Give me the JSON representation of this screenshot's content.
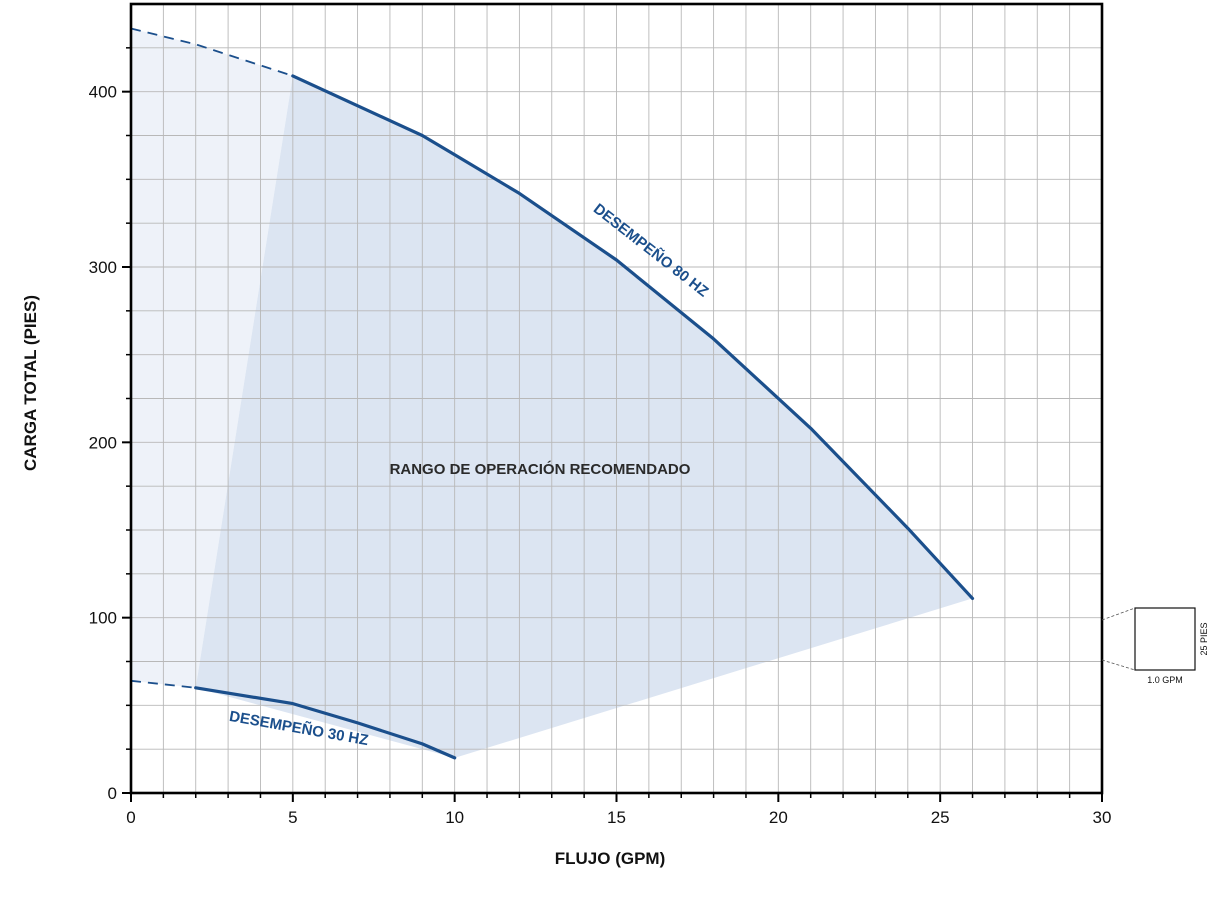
{
  "chart_data": {
    "type": "line",
    "xlabel": "FLUJO (GPM)",
    "ylabel": "CARGA TOTAL (PIES)",
    "xlim": [
      0,
      30
    ],
    "ylim": [
      0,
      450
    ],
    "x_ticks": [
      0,
      5,
      10,
      15,
      20,
      25,
      30
    ],
    "y_ticks": [
      0,
      100,
      200,
      300,
      400
    ],
    "x_minor_step": 1,
    "y_minor_step": 25,
    "grid": true,
    "series": [
      {
        "name": "DESEMPEÑO 80 HZ",
        "x": [
          5,
          9,
          10,
          12,
          15,
          18,
          21,
          24,
          26
        ],
        "y": [
          409,
          375,
          364,
          342,
          304,
          259,
          208,
          151,
          111
        ],
        "dashed_extension": {
          "x": [
            0,
            2,
            5
          ],
          "y": [
            436,
            427,
            409
          ]
        }
      },
      {
        "name": "DESEMPEÑO 30 HZ",
        "x": [
          2,
          5,
          7,
          9,
          10
        ],
        "y": [
          60,
          51,
          40,
          28,
          20
        ],
        "dashed_extension": {
          "x": [
            0,
            2
          ],
          "y": [
            64,
            60
          ]
        }
      }
    ],
    "recommended_region": {
      "label": "RANGO DE OPERACIÓN RECOMENDADO",
      "boundary_x": [
        2,
        5,
        9,
        10,
        12,
        15,
        18,
        21,
        24,
        26,
        10
      ],
      "boundary_y": [
        60,
        409,
        375,
        364,
        342,
        304,
        259,
        208,
        151,
        111,
        20
      ]
    },
    "extended_region": {
      "boundary_x": [
        0,
        2,
        5,
        5,
        2,
        0
      ],
      "boundary_y": [
        436,
        427,
        409,
        409,
        60,
        64
      ]
    },
    "colors": {
      "curve": "#1b4f8c",
      "region": "#dce5f2",
      "extended_region": "#eef2f9",
      "grid": "#b8b8b8"
    }
  },
  "scale_key": {
    "width_label": "1.0 GPM",
    "height_label": "25 PIES"
  }
}
